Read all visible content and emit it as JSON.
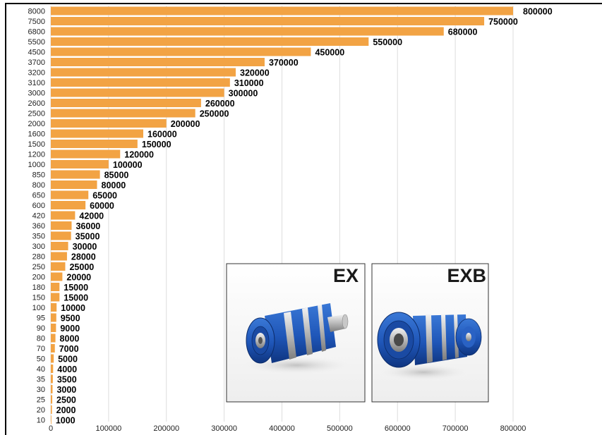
{
  "chart_data": {
    "type": "bar",
    "orientation": "horizontal",
    "categories": [
      "8000",
      "7500",
      "6800",
      "5500",
      "4500",
      "3700",
      "3200",
      "3100",
      "3000",
      "2600",
      "2500",
      "2000",
      "1600",
      "1500",
      "1200",
      "1000",
      "850",
      "800",
      "650",
      "600",
      "420",
      "360",
      "350",
      "300",
      "280",
      "250",
      "200",
      "180",
      "150",
      "100",
      "95",
      "90",
      "80",
      "70",
      "50",
      "40",
      "35",
      "30",
      "25",
      "20",
      "10"
    ],
    "values": [
      800000,
      750000,
      680000,
      550000,
      450000,
      370000,
      320000,
      310000,
      300000,
      260000,
      250000,
      200000,
      160000,
      150000,
      120000,
      100000,
      85000,
      80000,
      65000,
      60000,
      42000,
      36000,
      35000,
      30000,
      28000,
      25000,
      20000,
      15000,
      15000,
      10000,
      9500,
      9000,
      8000,
      7000,
      5000,
      4000,
      3500,
      3000,
      2500,
      2000,
      1000
    ],
    "value_labels": [
      "800000",
      "750000",
      "680000",
      "550000",
      "450000",
      "370000",
      "320000",
      "310000",
      "300000",
      "260000",
      "250000",
      "200000",
      "160000",
      "150000",
      "120000",
      "100000",
      "85000",
      "80000",
      "65000",
      "60000",
      "42000",
      "36000",
      "35000",
      "30000",
      "28000",
      "25000",
      "20000",
      "15000",
      "15000",
      "10000",
      "9500",
      "9000",
      "8000",
      "7000",
      "5000",
      "4000",
      "3500",
      "3000",
      "2500",
      "2000",
      "1000"
    ],
    "xticks": [
      "0",
      "100000",
      "200000",
      "300000",
      "400000",
      "500000",
      "600000",
      "700000",
      "800000"
    ],
    "xlim": [
      0,
      800000
    ],
    "grid": "vertical",
    "bar_color": "#f2a344",
    "title": "",
    "xlabel": "",
    "ylabel": ""
  },
  "photos": [
    {
      "title": "EX",
      "accent": "#1f56b8"
    },
    {
      "title": "EXB",
      "accent": "#1f56b8"
    }
  ]
}
